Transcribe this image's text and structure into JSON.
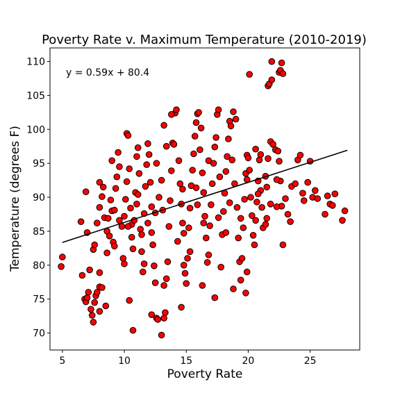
{
  "chart_data": {
    "type": "scatter",
    "title": "Poverty Rate v. Maximum Temperature (2010-2019)",
    "xlabel": "Poverty Rate",
    "ylabel": "Temperature (degrees F)",
    "xlim": [
      4,
      29
    ],
    "ylim": [
      67.5,
      112
    ],
    "xticks": [
      5,
      10,
      15,
      20,
      25
    ],
    "yticks": [
      70,
      75,
      80,
      85,
      90,
      95,
      100,
      105,
      110
    ],
    "annotation": "y = 0.59x + 80.4",
    "regression": {
      "slope": 0.59,
      "intercept": 80.4,
      "x_range": [
        5,
        28
      ]
    },
    "marker_color": "#ff0000",
    "marker_edge": "#000000",
    "line_color": "#000000",
    "grid": false,
    "points": [
      [
        4.9,
        79.8
      ],
      [
        5.0,
        81.2
      ],
      [
        6.5,
        86.4
      ],
      [
        6.6,
        78.5
      ],
      [
        6.8,
        75.0
      ],
      [
        6.9,
        74.6
      ],
      [
        7.0,
        75.2
      ],
      [
        7.1,
        76.0
      ],
      [
        7.2,
        79.3
      ],
      [
        7.0,
        84.8
      ],
      [
        6.9,
        90.8
      ],
      [
        7.3,
        73.5
      ],
      [
        7.4,
        72.6
      ],
      [
        7.5,
        71.6
      ],
      [
        7.6,
        74.5
      ],
      [
        7.7,
        75.5
      ],
      [
        7.8,
        76.0
      ],
      [
        8.0,
        73.2
      ],
      [
        8.0,
        76.8
      ],
      [
        8.2,
        76.7
      ],
      [
        8.0,
        78.9
      ],
      [
        8.5,
        74.0
      ],
      [
        7.5,
        82.3
      ],
      [
        7.6,
        83.0
      ],
      [
        7.8,
        86.2
      ],
      [
        8.0,
        88.5
      ],
      [
        8.2,
        90.1
      ],
      [
        8.3,
        91.5
      ],
      [
        8.0,
        92.2
      ],
      [
        8.4,
        87.0
      ],
      [
        8.6,
        85.0
      ],
      [
        8.8,
        84.3
      ],
      [
        8.9,
        89.6
      ],
      [
        9.0,
        88.0
      ],
      [
        9.1,
        83.4
      ],
      [
        9.2,
        82.8
      ],
      [
        9.3,
        91.3
      ],
      [
        9.4,
        93.0
      ],
      [
        9.5,
        96.6
      ],
      [
        9.6,
        94.5
      ],
      [
        9.0,
        95.4
      ],
      [
        8.6,
        81.8
      ],
      [
        8.7,
        86.9
      ],
      [
        9.8,
        85.7
      ],
      [
        9.9,
        81.0
      ],
      [
        10.0,
        80.2
      ],
      [
        10.0,
        87.2
      ],
      [
        10.1,
        89.7
      ],
      [
        10.2,
        92.3
      ],
      [
        10.2,
        99.4
      ],
      [
        10.3,
        99.1
      ],
      [
        10.4,
        94.2
      ],
      [
        10.5,
        88.4
      ],
      [
        10.6,
        86.0
      ],
      [
        10.6,
        84.1
      ],
      [
        10.7,
        82.4
      ],
      [
        10.8,
        86.6
      ],
      [
        10.9,
        90.7
      ],
      [
        11.0,
        89.0
      ],
      [
        11.0,
        96.0
      ],
      [
        11.1,
        97.3
      ],
      [
        11.2,
        93.5
      ],
      [
        11.3,
        85.3
      ],
      [
        11.4,
        82.0
      ],
      [
        11.5,
        79.0
      ],
      [
        11.6,
        80.2
      ],
      [
        11.6,
        87.6
      ],
      [
        11.7,
        91.6
      ],
      [
        11.8,
        94.8
      ],
      [
        11.9,
        97.9
      ],
      [
        12.0,
        96.3
      ],
      [
        12.1,
        92.2
      ],
      [
        12.2,
        88.6
      ],
      [
        12.2,
        84.8
      ],
      [
        12.3,
        83.0
      ],
      [
        12.4,
        79.9
      ],
      [
        12.5,
        77.4
      ],
      [
        12.6,
        72.2
      ],
      [
        12.7,
        72.0
      ],
      [
        10.4,
        74.8
      ],
      [
        10.7,
        70.4
      ],
      [
        12.2,
        72.7
      ],
      [
        13.0,
        69.7
      ],
      [
        13.2,
        72.2
      ],
      [
        13.3,
        73.0
      ],
      [
        13.2,
        77.0
      ],
      [
        13.4,
        78.0
      ],
      [
        13.5,
        80.5
      ],
      [
        13.6,
        85.7
      ],
      [
        13.7,
        89.5
      ],
      [
        13.8,
        93.9
      ],
      [
        13.9,
        98.0
      ],
      [
        14.0,
        97.8
      ],
      [
        14.1,
        102.4
      ],
      [
        14.2,
        102.9
      ],
      [
        13.8,
        102.2
      ],
      [
        13.2,
        100.6
      ],
      [
        14.4,
        95.4
      ],
      [
        14.5,
        92.0
      ],
      [
        14.6,
        89.0
      ],
      [
        14.7,
        86.2
      ],
      [
        14.8,
        84.7
      ],
      [
        14.8,
        80.0
      ],
      [
        14.9,
        78.8
      ],
      [
        14.6,
        73.8
      ],
      [
        15.0,
        77.3
      ],
      [
        15.1,
        81.0
      ],
      [
        15.2,
        85.5
      ],
      [
        15.3,
        88.4
      ],
      [
        15.4,
        91.7
      ],
      [
        15.5,
        94.0
      ],
      [
        15.6,
        96.4
      ],
      [
        15.7,
        99.0
      ],
      [
        15.8,
        101.0
      ],
      [
        15.9,
        102.3
      ],
      [
        16.0,
        102.5
      ],
      [
        16.2,
        100.2
      ],
      [
        16.1,
        97.0
      ],
      [
        16.3,
        93.6
      ],
      [
        16.4,
        90.7
      ],
      [
        16.5,
        87.2
      ],
      [
        16.6,
        84.0
      ],
      [
        16.7,
        80.4
      ],
      [
        16.3,
        77.0
      ],
      [
        16.8,
        81.5
      ],
      [
        16.9,
        85.8
      ],
      [
        17.0,
        88.9
      ],
      [
        17.1,
        92.0
      ],
      [
        17.2,
        95.0
      ],
      [
        17.3,
        97.4
      ],
      [
        17.4,
        98.8
      ],
      [
        17.5,
        102.2
      ],
      [
        17.6,
        102.9
      ],
      [
        17.3,
        75.2
      ],
      [
        17.8,
        79.7
      ],
      [
        17.9,
        84.5
      ],
      [
        18.0,
        87.9
      ],
      [
        18.1,
        90.6
      ],
      [
        18.2,
        93.8
      ],
      [
        18.3,
        96.0
      ],
      [
        18.4,
        98.6
      ],
      [
        18.5,
        101.2
      ],
      [
        18.6,
        100.5
      ],
      [
        18.8,
        102.6
      ],
      [
        19.0,
        101.5
      ],
      [
        18.7,
        95.5
      ],
      [
        18.9,
        92.0
      ],
      [
        19.1,
        88.5
      ],
      [
        19.2,
        84.0
      ],
      [
        19.3,
        80.5
      ],
      [
        19.4,
        77.8
      ],
      [
        18.8,
        76.5
      ],
      [
        19.5,
        81.0
      ],
      [
        19.6,
        85.5
      ],
      [
        19.7,
        89.7
      ],
      [
        19.8,
        93.5
      ],
      [
        19.9,
        96.2
      ],
      [
        20.0,
        95.8
      ],
      [
        20.1,
        94.0
      ],
      [
        20.2,
        90.0
      ],
      [
        20.3,
        87.3
      ],
      [
        20.4,
        84.4
      ],
      [
        20.5,
        83.0
      ],
      [
        20.6,
        86.6
      ],
      [
        20.7,
        89.3
      ],
      [
        20.8,
        92.4
      ],
      [
        20.9,
        95.5
      ],
      [
        21.0,
        91.0
      ],
      [
        21.1,
        88.5
      ],
      [
        21.2,
        85.5
      ],
      [
        19.8,
        75.9
      ],
      [
        19.9,
        79.0
      ],
      [
        21.4,
        86.0
      ],
      [
        21.5,
        91.5
      ],
      [
        21.6,
        95.7
      ],
      [
        21.8,
        98.2
      ],
      [
        22.0,
        97.8
      ],
      [
        22.2,
        97.0
      ],
      [
        22.4,
        96.8
      ],
      [
        22.5,
        95.3
      ],
      [
        22.6,
        92.4
      ],
      [
        22.7,
        88.7
      ],
      [
        22.8,
        83.0
      ],
      [
        23.0,
        89.8
      ],
      [
        23.2,
        87.5
      ],
      [
        23.4,
        86.4
      ],
      [
        23.5,
        91.6
      ],
      [
        23.8,
        92.0
      ],
      [
        24.0,
        95.5
      ],
      [
        24.2,
        96.2
      ],
      [
        24.4,
        90.6
      ],
      [
        24.5,
        89.5
      ],
      [
        24.8,
        92.2
      ],
      [
        25.0,
        95.3
      ],
      [
        25.2,
        90.0
      ],
      [
        25.4,
        91.0
      ],
      [
        25.6,
        89.8
      ],
      [
        26.2,
        87.5
      ],
      [
        26.4,
        90.2
      ],
      [
        26.6,
        89.0
      ],
      [
        26.8,
        88.8
      ],
      [
        27.0,
        90.5
      ],
      [
        27.6,
        86.6
      ],
      [
        27.8,
        88.0
      ],
      [
        21.5,
        86.9
      ],
      [
        21.8,
        89.0
      ],
      [
        22.3,
        88.6
      ],
      [
        21.6,
        106.4
      ],
      [
        21.7,
        106.7
      ],
      [
        21.9,
        107.3
      ],
      [
        22.5,
        108.4
      ],
      [
        22.6,
        108.7
      ],
      [
        22.8,
        108.2
      ],
      [
        22.7,
        109.8
      ],
      [
        21.9,
        110.0
      ],
      [
        20.1,
        108.1
      ],
      [
        12.5,
        87.7
      ],
      [
        12.8,
        90.0
      ],
      [
        13.0,
        92.5
      ],
      [
        11.4,
        84.5
      ],
      [
        11.9,
        86.2
      ],
      [
        12.6,
        95.0
      ],
      [
        13.4,
        97.5
      ],
      [
        14.3,
        83.5
      ],
      [
        15.3,
        82.0
      ],
      [
        15.8,
        91.4
      ],
      [
        16.8,
        95.4
      ],
      [
        17.7,
        93.0
      ],
      [
        18.5,
        89.2
      ],
      [
        19.4,
        86.9
      ],
      [
        20.6,
        97.1
      ],
      [
        21.0,
        96.3
      ],
      [
        9.6,
        86.6
      ],
      [
        10.3,
        85.7
      ],
      [
        9.2,
        88.1
      ],
      [
        11.1,
        90.4
      ],
      [
        13.1,
        88.1
      ],
      [
        14.7,
        91.2
      ],
      [
        15.9,
        88.9
      ],
      [
        16.4,
        86.2
      ],
      [
        17.6,
        87.0
      ],
      [
        18.2,
        84.8
      ],
      [
        19.9,
        92.6
      ],
      [
        20.8,
        90.5
      ],
      [
        21.4,
        93.1
      ],
      [
        22.3,
        92.6
      ]
    ]
  }
}
